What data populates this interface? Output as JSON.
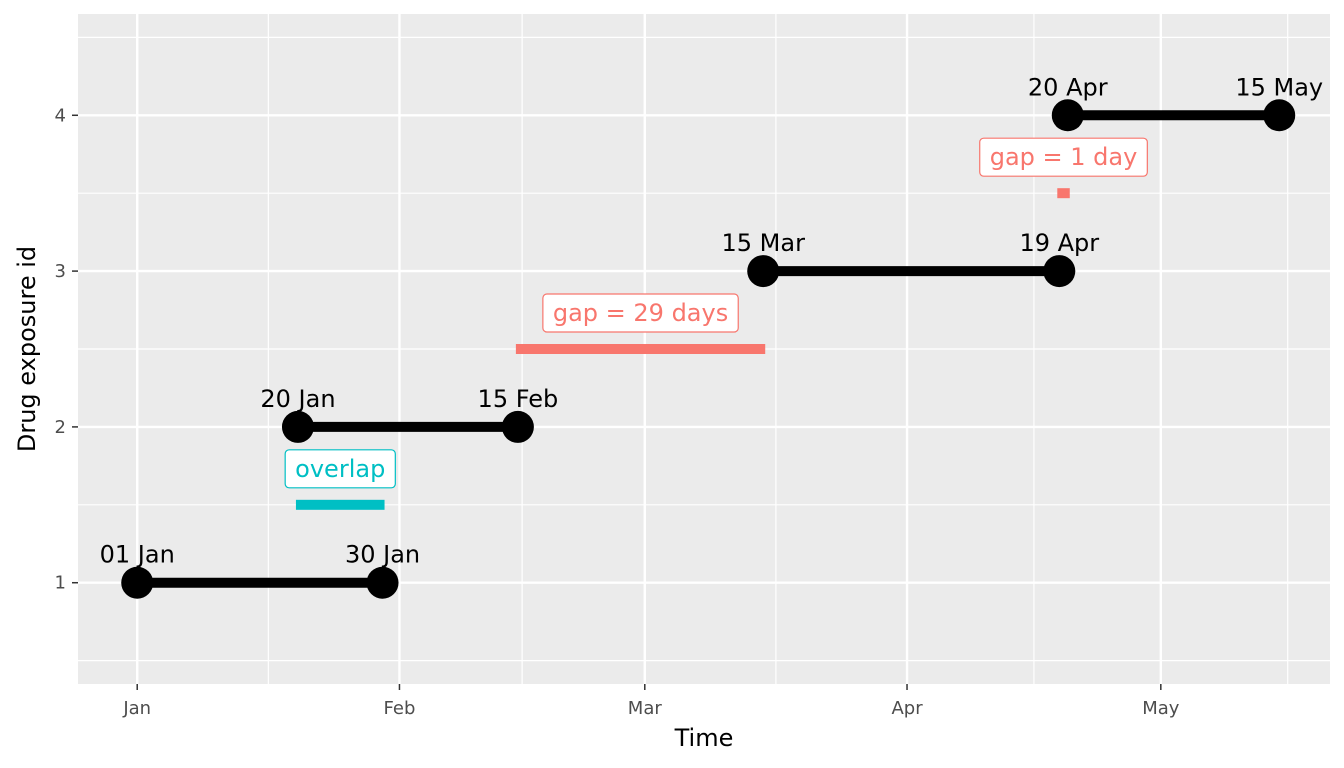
{
  "chart_data": {
    "type": "line",
    "title": "",
    "xlabel": "Time",
    "ylabel": "Drug exposure id",
    "x_tick_labels": [
      "Jan",
      "Feb",
      "Mar",
      "Apr",
      "May"
    ],
    "x_ticks": [
      "2020-01-01",
      "2020-02-01",
      "2020-03-01",
      "2020-04-01",
      "2020-05-01"
    ],
    "xlim": [
      "2019-12-25",
      "2020-05-21"
    ],
    "y_ticks": [
      1,
      2,
      3,
      4
    ],
    "y_tick_labels": [
      "1",
      "2",
      "3",
      "4"
    ],
    "ylim": [
      0.35,
      4.65
    ],
    "grid": true,
    "background": "#ebebeb",
    "segment_color": "#000000",
    "exposures": [
      {
        "id": 1,
        "start": "2020-01-01",
        "end": "2020-01-30",
        "start_label": "01 Jan",
        "end_label": "30 Jan"
      },
      {
        "id": 2,
        "start": "2020-01-20",
        "end": "2020-02-15",
        "start_label": "20 Jan",
        "end_label": "15 Feb"
      },
      {
        "id": 3,
        "start": "2020-03-15",
        "end": "2020-04-19",
        "start_label": "15 Mar",
        "end_label": "19 Apr"
      },
      {
        "id": 4,
        "start": "2020-04-20",
        "end": "2020-05-15",
        "start_label": "20 Apr",
        "end_label": "15 May"
      }
    ],
    "annotations": [
      {
        "label": "overlap",
        "start": "2020-01-20",
        "end": "2020-01-30",
        "y": 1.5,
        "color": "#00bfc4"
      },
      {
        "label": "gap = 29 days",
        "start": "2020-02-15",
        "end": "2020-03-15",
        "y": 2.5,
        "color": "#f8766d"
      },
      {
        "label": "gap = 1 day",
        "start": "2020-04-19",
        "end": "2020-04-20",
        "y": 3.5,
        "color": "#f8766d"
      }
    ]
  }
}
